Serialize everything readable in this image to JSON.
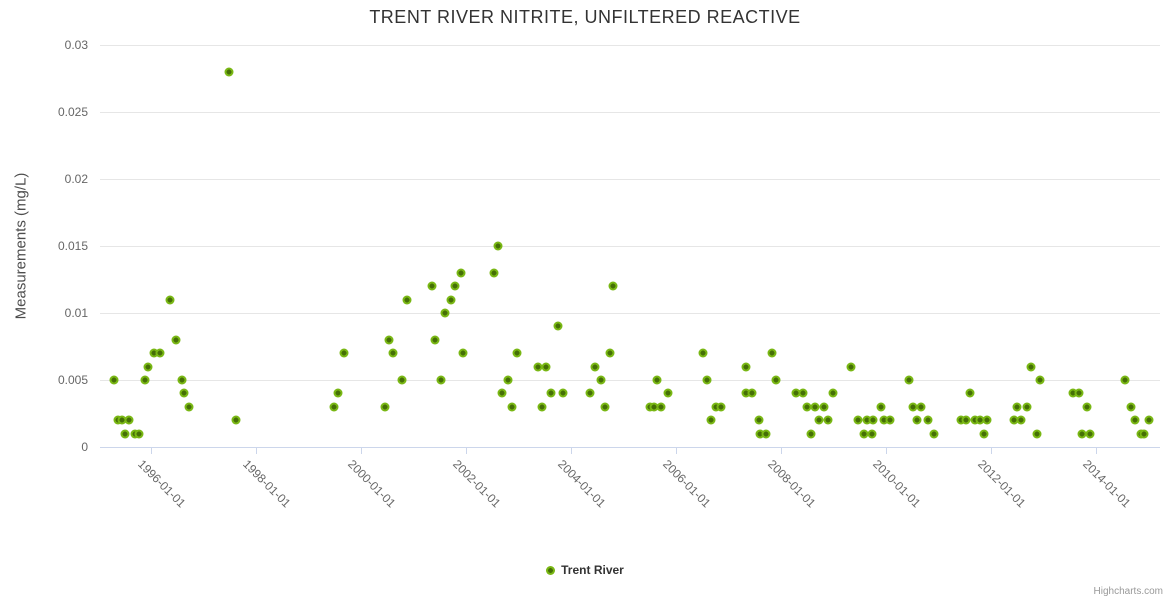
{
  "title": "TRENT RIVER NITRITE, UNFILTERED REACTIVE",
  "legend": {
    "series_label": "Trent River"
  },
  "credits": "Highcharts.com",
  "colors": {
    "marker_ring": "#79b714",
    "marker_center": "#456f06",
    "gridline": "#e6e6e6",
    "axis_line": "#ccd6eb",
    "title_text": "#333333",
    "label_text": "#666666"
  },
  "chart_data": {
    "type": "scatter",
    "title": "TRENT RIVER NITRITE, UNFILTERED REACTIVE",
    "xlabel": "",
    "ylabel": "Measurements (mg/L)",
    "legend_position": "bottom-center",
    "grid": "horizontal-only",
    "x_axis": {
      "min": 1995.02,
      "max": 2015.22,
      "tick_years": [
        1996,
        1998,
        2000,
        2002,
        2004,
        2006,
        2008,
        2010,
        2012,
        2014
      ],
      "tick_labels": [
        "1996-01-01",
        "1998-01-01",
        "2000-01-01",
        "2002-01-01",
        "2004-01-01",
        "2006-01-01",
        "2008-01-01",
        "2010-01-01",
        "2012-01-01",
        "2014-01-01"
      ],
      "label_rotation_deg": 45
    },
    "y_axis": {
      "min": 0,
      "max": 0.03,
      "ticks": [
        0,
        0.005,
        0.01,
        0.015,
        0.02,
        0.025,
        0.03
      ],
      "tick_labels": [
        "0",
        "0.005",
        "0.01",
        "0.015",
        "0.02",
        "0.025",
        "0.03"
      ]
    },
    "series": [
      {
        "name": "Trent River",
        "points": [
          [
            1995.28,
            0.005
          ],
          [
            1995.36,
            0.002
          ],
          [
            1995.44,
            0.002
          ],
          [
            1995.49,
            0.001
          ],
          [
            1995.57,
            0.002
          ],
          [
            1995.68,
            0.001
          ],
          [
            1995.76,
            0.001
          ],
          [
            1995.88,
            0.005
          ],
          [
            1995.94,
            0.006
          ],
          [
            1996.05,
            0.007
          ],
          [
            1996.16,
            0.007
          ],
          [
            1996.36,
            0.011
          ],
          [
            1996.46,
            0.008
          ],
          [
            1996.58,
            0.005
          ],
          [
            1996.63,
            0.004
          ],
          [
            1996.71,
            0.003
          ],
          [
            1997.47,
            0.028
          ],
          [
            1997.61,
            0.002
          ],
          [
            1999.47,
            0.003
          ],
          [
            1999.55,
            0.004
          ],
          [
            1999.67,
            0.007
          ],
          [
            2000.45,
            0.003
          ],
          [
            2000.52,
            0.008
          ],
          [
            2000.6,
            0.007
          ],
          [
            2000.78,
            0.005
          ],
          [
            2000.87,
            0.011
          ],
          [
            2001.34,
            0.012
          ],
          [
            2001.41,
            0.008
          ],
          [
            2001.51,
            0.005
          ],
          [
            2001.59,
            0.01
          ],
          [
            2001.7,
            0.011
          ],
          [
            2001.78,
            0.012
          ],
          [
            2001.89,
            0.013
          ],
          [
            2001.93,
            0.007
          ],
          [
            2002.52,
            0.013
          ],
          [
            2002.61,
            0.015
          ],
          [
            2002.68,
            0.004
          ],
          [
            2002.79,
            0.005
          ],
          [
            2002.87,
            0.003
          ],
          [
            2002.96,
            0.007
          ],
          [
            2003.36,
            0.006
          ],
          [
            2003.45,
            0.003
          ],
          [
            2003.52,
            0.006
          ],
          [
            2003.61,
            0.004
          ],
          [
            2003.74,
            0.009
          ],
          [
            2003.84,
            0.004
          ],
          [
            2004.36,
            0.004
          ],
          [
            2004.45,
            0.006
          ],
          [
            2004.56,
            0.005
          ],
          [
            2004.65,
            0.003
          ],
          [
            2004.74,
            0.007
          ],
          [
            2004.8,
            0.012
          ],
          [
            2005.5,
            0.003
          ],
          [
            2005.57,
            0.003
          ],
          [
            2005.63,
            0.005
          ],
          [
            2005.71,
            0.003
          ],
          [
            2005.85,
            0.004
          ],
          [
            2006.51,
            0.007
          ],
          [
            2006.58,
            0.005
          ],
          [
            2006.67,
            0.002
          ],
          [
            2006.76,
            0.003
          ],
          [
            2006.86,
            0.003
          ],
          [
            2007.33,
            0.006
          ],
          [
            2007.34,
            0.004
          ],
          [
            2007.45,
            0.004
          ],
          [
            2007.57,
            0.002
          ],
          [
            2007.6,
            0.001
          ],
          [
            2007.72,
            0.001
          ],
          [
            2007.82,
            0.007
          ],
          [
            2007.9,
            0.005
          ],
          [
            2008.29,
            0.004
          ],
          [
            2008.41,
            0.004
          ],
          [
            2008.5,
            0.003
          ],
          [
            2008.57,
            0.001
          ],
          [
            2008.64,
            0.003
          ],
          [
            2008.73,
            0.002
          ],
          [
            2008.81,
            0.003
          ],
          [
            2008.9,
            0.002
          ],
          [
            2008.99,
            0.004
          ],
          [
            2009.33,
            0.006
          ],
          [
            2009.46,
            0.002
          ],
          [
            2009.57,
            0.001
          ],
          [
            2009.63,
            0.002
          ],
          [
            2009.74,
            0.001
          ],
          [
            2009.75,
            0.002
          ],
          [
            2009.91,
            0.003
          ],
          [
            2009.96,
            0.002
          ],
          [
            2010.07,
            0.002
          ],
          [
            2010.43,
            0.005
          ],
          [
            2010.52,
            0.003
          ],
          [
            2010.58,
            0.002
          ],
          [
            2010.66,
            0.003
          ],
          [
            2010.8,
            0.002
          ],
          [
            2010.92,
            0.001
          ],
          [
            2011.43,
            0.002
          ],
          [
            2011.53,
            0.002
          ],
          [
            2011.59,
            0.004
          ],
          [
            2011.7,
            0.002
          ],
          [
            2011.79,
            0.002
          ],
          [
            2011.86,
            0.001
          ],
          [
            2011.93,
            0.002
          ],
          [
            2012.44,
            0.002
          ],
          [
            2012.5,
            0.003
          ],
          [
            2012.58,
            0.002
          ],
          [
            2012.68,
            0.003
          ],
          [
            2012.76,
            0.006
          ],
          [
            2012.87,
            0.001
          ],
          [
            2012.93,
            0.005
          ],
          [
            2013.56,
            0.004
          ],
          [
            2013.67,
            0.004
          ],
          [
            2013.73,
            0.001
          ],
          [
            2013.83,
            0.003
          ],
          [
            2013.88,
            0.001
          ],
          [
            2014.56,
            0.005
          ],
          [
            2014.66,
            0.003
          ],
          [
            2014.74,
            0.002
          ],
          [
            2014.85,
            0.001
          ],
          [
            2014.92,
            0.001
          ],
          [
            2015.01,
            0.002
          ]
        ]
      }
    ]
  }
}
